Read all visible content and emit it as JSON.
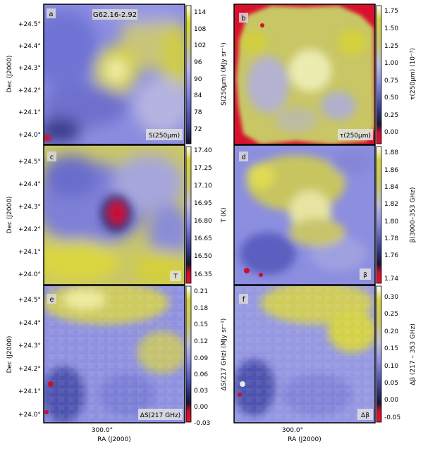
{
  "figure": {
    "ylabel": "Dec (J2000)",
    "xlabel": "RA (J2000)",
    "ra_tick": "300.0°",
    "dec_ticks": [
      "+24.5°",
      "+24.4°",
      "+24.3°",
      "+24.2°",
      "+24.1°",
      "+24.0°"
    ]
  },
  "panels": [
    {
      "letter": "a",
      "title": "G62.16-2.92",
      "tag": "S(250μm)",
      "colorbar_label": "S(250μm) (MJy sr⁻¹)",
      "colorbar_ticks": [
        "114",
        "108",
        "102",
        "96",
        "90",
        "84",
        "78",
        "72"
      ],
      "colormap": "blue-white-yellow",
      "colorbar_range": [
        68,
        117
      ]
    },
    {
      "letter": "b",
      "title": "",
      "tag": "τ(250μm)",
      "colorbar_label": "τ(250μm) (10⁻³)",
      "colorbar_ticks": [
        "1.75",
        "1.50",
        "1.25",
        "1.00",
        "0.75",
        "0.50",
        "0.25",
        "0.00"
      ],
      "colormap": "red-blue-white-yellow",
      "colorbar_range": [
        -0.1,
        1.8
      ]
    },
    {
      "letter": "c",
      "title": "",
      "tag": "T",
      "colorbar_label": "T (K)",
      "colorbar_ticks": [
        "17.40",
        "17.25",
        "17.10",
        "16.95",
        "16.80",
        "16.65",
        "16.50",
        "16.35"
      ],
      "colormap": "red-blue-white-yellow",
      "colorbar_range": [
        16.3,
        17.45
      ]
    },
    {
      "letter": "d",
      "title": "",
      "tag": "β",
      "colorbar_label": "β(3000–353 GHz)",
      "colorbar_ticks": [
        "1.88",
        "1.86",
        "1.84",
        "1.82",
        "1.80",
        "1.78",
        "1.76",
        "1.74"
      ],
      "colormap": "red-blue-white-yellow",
      "colorbar_range": [
        1.735,
        1.895
      ]
    },
    {
      "letter": "e",
      "title": "",
      "tag": "ΔS(217 GHz)",
      "colorbar_label": "ΔS(217 GHz) (MJy sr⁻¹)",
      "colorbar_ticks": [
        "0.21",
        "0.18",
        "0.15",
        "0.12",
        "0.09",
        "0.06",
        "0.03",
        "0.00",
        "-0.03"
      ],
      "colormap": "red-blue-white-yellow",
      "colorbar_range": [
        -0.04,
        0.225
      ]
    },
    {
      "letter": "f",
      "title": "",
      "tag": "Δβ",
      "colorbar_label": "Δβ (217 – 353 GHz)",
      "colorbar_ticks": [
        "0.30",
        "0.25",
        "0.20",
        "0.15",
        "0.10",
        "0.05",
        "0.00",
        "-0.05"
      ],
      "colormap": "red-blue-white-yellow",
      "colorbar_range": [
        -0.06,
        0.32
      ]
    }
  ]
}
